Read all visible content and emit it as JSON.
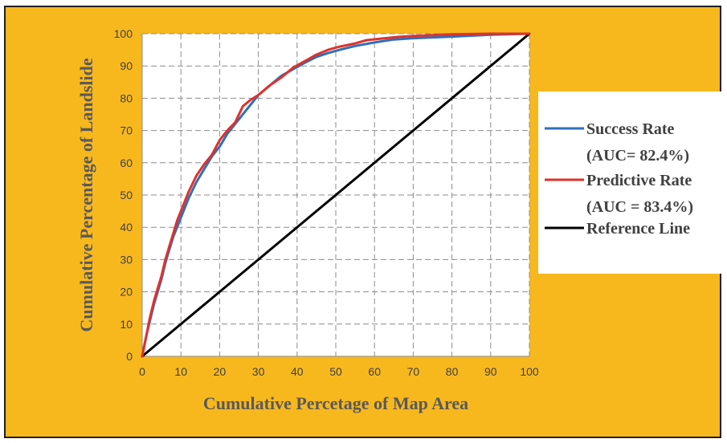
{
  "chart_data": {
    "type": "line",
    "xlabel": "Cumulative Percetage of Map Area",
    "ylabel": "Cumulative Percentage of Landslide",
    "xlim": [
      0,
      100
    ],
    "ylim": [
      0,
      100
    ],
    "xticks": [
      0,
      10,
      20,
      30,
      40,
      50,
      60,
      70,
      80,
      90,
      100
    ],
    "yticks": [
      0,
      10,
      20,
      30,
      40,
      50,
      60,
      70,
      80,
      90,
      100
    ],
    "grid": "dashed",
    "legend_position": "right",
    "series": [
      {
        "name": "Success Rate",
        "note": "(AUC= 82.4%)",
        "color": "#2e6fba",
        "x": [
          0,
          1,
          2,
          3,
          4,
          5,
          6,
          7,
          8,
          9,
          10,
          12,
          14,
          16,
          18,
          20,
          22,
          24,
          26,
          28,
          30,
          33,
          36,
          39,
          42,
          45,
          48,
          51,
          55,
          60,
          65,
          70,
          80,
          90,
          100
        ],
        "y": [
          0,
          6,
          11,
          16,
          20,
          24,
          29,
          33,
          37,
          40,
          43,
          49,
          54,
          58,
          62,
          65,
          69,
          72,
          75,
          78,
          81,
          84,
          87,
          89,
          91,
          92.8,
          94,
          95,
          96.2,
          97.3,
          98.2,
          98.6,
          99.1,
          99.7,
          100
        ]
      },
      {
        "name": "Predictive Rate",
        "note": "(AUC = 83.4%)",
        "color": "#e0312a",
        "x": [
          0,
          1,
          2,
          3,
          4,
          5,
          6,
          7,
          8,
          9,
          10,
          12,
          14,
          16,
          18,
          20,
          22,
          24,
          26,
          28,
          30,
          33,
          36,
          39,
          42,
          45,
          48,
          51,
          55,
          58,
          62,
          66,
          70,
          80,
          90,
          100
        ],
        "y": [
          0,
          6,
          12,
          17,
          21,
          25,
          30,
          34,
          38,
          42,
          45,
          51,
          56,
          59.5,
          62.5,
          67,
          70,
          72.5,
          77.5,
          79.5,
          81,
          84,
          86.5,
          89.5,
          91.5,
          93.5,
          95,
          96,
          97,
          98,
          98.5,
          99,
          99.3,
          99.8,
          100,
          100
        ]
      },
      {
        "name": "Reference Line",
        "color": "#000000",
        "x": [
          0,
          100
        ],
        "y": [
          0,
          100
        ]
      }
    ]
  }
}
